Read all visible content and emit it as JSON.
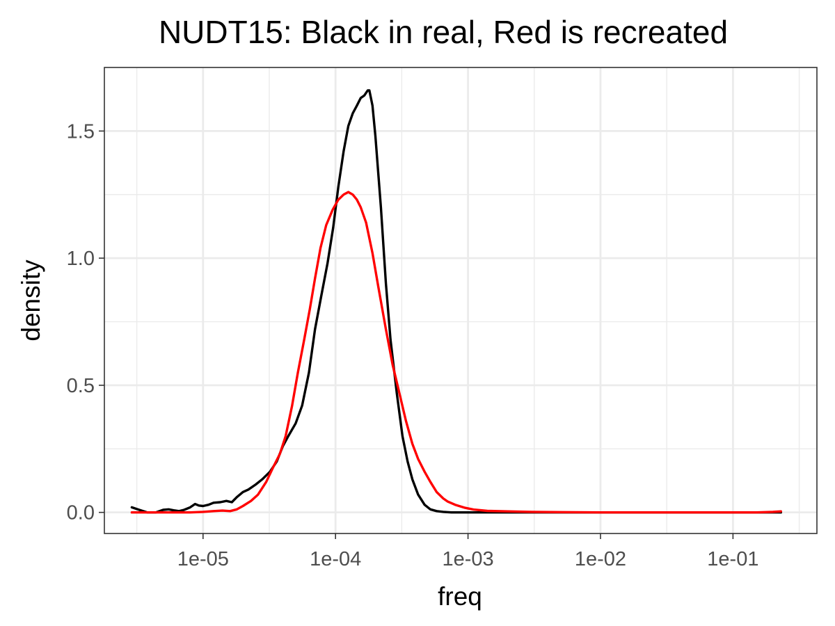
{
  "chart_data": {
    "type": "line",
    "title": "NUDT15: Black in real, Red is recreated",
    "xlabel": "freq",
    "ylabel": "density",
    "x_scale": "log10",
    "xlim": [
      1.8e-06,
      0.43
    ],
    "ylim": [
      -0.083,
      1.75
    ],
    "x_ticks": [
      {
        "value": 1e-05,
        "label": "1e-05"
      },
      {
        "value": 0.0001,
        "label": "1e-04"
      },
      {
        "value": 0.001,
        "label": "1e-03"
      },
      {
        "value": 0.01,
        "label": "1e-02"
      },
      {
        "value": 0.1,
        "label": "1e-01"
      }
    ],
    "y_ticks": [
      {
        "value": 0,
        "label": "0.0"
      },
      {
        "value": 0.5,
        "label": "0.5"
      },
      {
        "value": 1,
        "label": "1.0"
      },
      {
        "value": 1.5,
        "label": "1.5"
      }
    ],
    "grid": true,
    "legend": "none",
    "series": [
      {
        "color": "#000000",
        "x": [
          2.9e-06,
          3.3e-06,
          3.8e-06,
          4.4e-06,
          5e-06,
          5.5e-06,
          6e-06,
          6.6e-06,
          7.2e-06,
          8e-06,
          8.7e-06,
          9.3e-06,
          1e-05,
          1.1e-05,
          1.2e-05,
          1.35e-05,
          1.5e-05,
          1.65e-05,
          1.8e-05,
          2e-05,
          2.2e-05,
          2.5e-05,
          2.8e-05,
          3.2e-05,
          3.6e-05,
          4e-05,
          4.4e-05,
          5e-05,
          5.6e-05,
          6.3e-05,
          7e-05,
          7.8e-05,
          8.7e-05,
          9.6e-05,
          0.000105,
          0.000115,
          0.000125,
          0.000135,
          0.000145,
          0.000155,
          0.000165,
          0.000175,
          0.00018,
          0.00019,
          0.0002,
          0.00022,
          0.00024,
          0.00026,
          0.00029,
          0.00032,
          0.00035,
          0.00038,
          0.00042,
          0.00047,
          0.00052,
          0.00058,
          0.00065,
          0.00075,
          0.0009,
          0.0012,
          0.002,
          0.005,
          0.02,
          0.1,
          0.23
        ],
        "y": [
          0.02,
          0.01,
          0.0,
          0.0,
          0.01,
          0.012,
          0.008,
          0.005,
          0.01,
          0.02,
          0.033,
          0.027,
          0.025,
          0.03,
          0.038,
          0.04,
          0.045,
          0.04,
          0.06,
          0.08,
          0.09,
          0.11,
          0.13,
          0.16,
          0.2,
          0.26,
          0.3,
          0.35,
          0.42,
          0.55,
          0.72,
          0.85,
          0.98,
          1.12,
          1.28,
          1.42,
          1.52,
          1.57,
          1.6,
          1.63,
          1.64,
          1.66,
          1.66,
          1.6,
          1.48,
          1.2,
          0.9,
          0.68,
          0.47,
          0.3,
          0.2,
          0.13,
          0.07,
          0.03,
          0.012,
          0.005,
          0.002,
          0.0,
          0.0,
          0.0,
          0.0,
          0.0,
          0.0,
          0.0,
          0.0
        ]
      },
      {
        "color": "#ff0000",
        "x": [
          2.9e-06,
          4e-06,
          6e-06,
          8e-06,
          1e-05,
          1.2e-05,
          1.4e-05,
          1.6e-05,
          1.8e-05,
          2e-05,
          2.3e-05,
          2.6e-05,
          3e-05,
          3.4e-05,
          3.8e-05,
          4.2e-05,
          4.7e-05,
          5.2e-05,
          5.8e-05,
          6.4e-05,
          7e-05,
          7.7e-05,
          8.5e-05,
          9.5e-05,
          0.000105,
          0.000115,
          0.000125,
          0.000135,
          0.000145,
          0.000155,
          0.00017,
          0.00019,
          0.00021,
          0.00024,
          0.00027,
          0.0003,
          0.00034,
          0.00038,
          0.00042,
          0.00047,
          0.00052,
          0.00058,
          0.00065,
          0.0007,
          0.0008,
          0.00095,
          0.0011,
          0.0014,
          0.002,
          0.003,
          0.005,
          0.01,
          0.05,
          0.15,
          0.2,
          0.23
        ],
        "y": [
          0.0,
          0.0,
          0.0,
          0.0,
          0.002,
          0.005,
          0.007,
          0.005,
          0.012,
          0.025,
          0.045,
          0.07,
          0.12,
          0.18,
          0.23,
          0.3,
          0.42,
          0.55,
          0.68,
          0.8,
          0.92,
          1.04,
          1.13,
          1.19,
          1.23,
          1.25,
          1.26,
          1.25,
          1.23,
          1.2,
          1.14,
          1.02,
          0.89,
          0.72,
          0.58,
          0.48,
          0.36,
          0.27,
          0.21,
          0.16,
          0.12,
          0.08,
          0.055,
          0.043,
          0.03,
          0.018,
          0.011,
          0.006,
          0.004,
          0.002,
          0.001,
          0.0,
          0.0,
          0.0,
          0.002,
          0.004
        ]
      }
    ]
  }
}
